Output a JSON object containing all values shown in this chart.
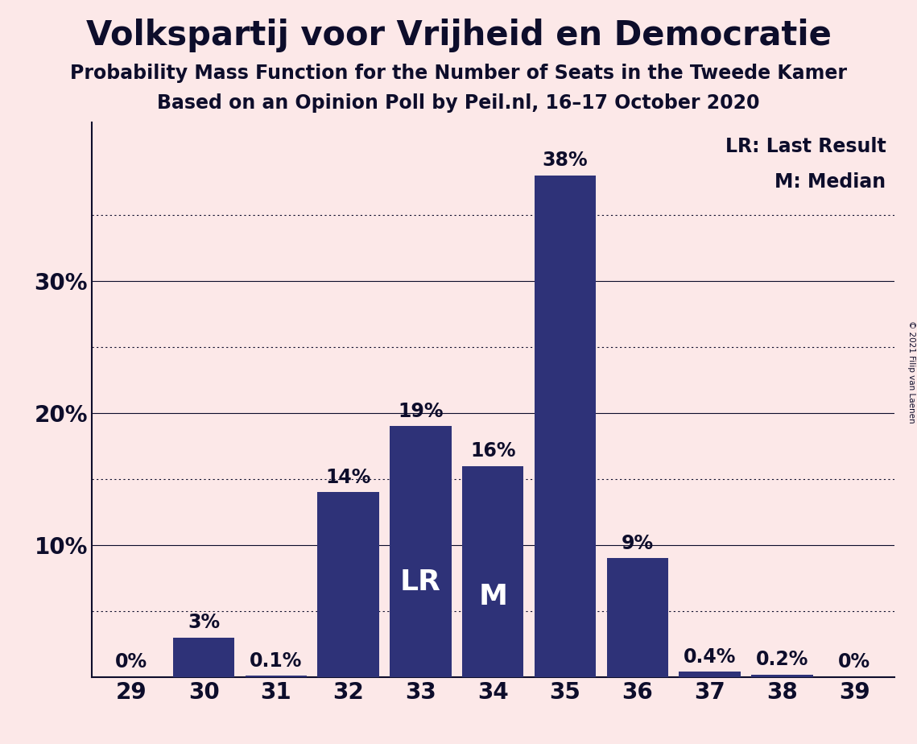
{
  "title": "Volkspartij voor Vrijheid en Democratie",
  "subtitle1": "Probability Mass Function for the Number of Seats in the Tweede Kamer",
  "subtitle2": "Based on an Opinion Poll by Peil.nl, 16–17 October 2020",
  "copyright": "© 2021 Filip van Laenen",
  "categories": [
    29,
    30,
    31,
    32,
    33,
    34,
    35,
    36,
    37,
    38,
    39
  ],
  "values": [
    0.0,
    3.0,
    0.1,
    14.0,
    19.0,
    16.0,
    38.0,
    9.0,
    0.4,
    0.2,
    0.0
  ],
  "labels": [
    "0%",
    "3%",
    "0.1%",
    "14%",
    "19%",
    "16%",
    "38%",
    "9%",
    "0.4%",
    "0.2%",
    "0%"
  ],
  "bar_color": "#2e3278",
  "background_color": "#fce8e8",
  "title_color": "#0d0d2b",
  "LR_bar_idx": 4,
  "M_bar_idx": 5,
  "legend_text": [
    "LR: Last Result",
    "M: Median"
  ],
  "yticks": [
    10,
    20,
    30
  ],
  "ytick_labels": [
    "10%",
    "20%",
    "30%"
  ],
  "ylim": [
    0,
    42
  ],
  "grid_major": [
    10,
    20,
    30
  ],
  "grid_minor": [
    5,
    15,
    25,
    35
  ],
  "title_fontsize": 30,
  "subtitle_fontsize": 17,
  "label_fontsize": 17,
  "axis_fontsize": 20,
  "legend_fontsize": 17,
  "lr_m_fontsize": 26
}
